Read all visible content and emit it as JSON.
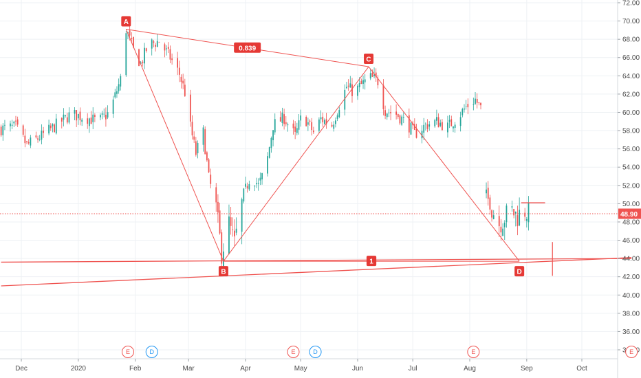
{
  "chart_data": {
    "type": "candlestick",
    "title": "",
    "xlabel": "",
    "ylabel": "",
    "ylim": [
      33,
      73
    ],
    "y_ticks": [
      "72.00",
      "70.00",
      "68.00",
      "66.00",
      "64.00",
      "62.00",
      "60.00",
      "58.00",
      "56.00",
      "54.00",
      "52.00",
      "50.00",
      "48.00",
      "46.00",
      "44.00",
      "42.00",
      "40.00",
      "38.00",
      "36.00",
      "34.00"
    ],
    "x_ticks": [
      {
        "label": "Dec",
        "date": "2019-12-01"
      },
      {
        "label": "2020",
        "date": "2020-01-01"
      },
      {
        "label": "Feb",
        "date": "2020-02-01"
      },
      {
        "label": "Mar",
        "date": "2020-03-01"
      },
      {
        "label": "Apr",
        "date": "2020-04-01"
      },
      {
        "label": "May",
        "date": "2020-05-01"
      },
      {
        "label": "Jun",
        "date": "2020-06-01"
      },
      {
        "label": "Jul",
        "date": "2020-07-01"
      },
      {
        "label": "Aug",
        "date": "2020-08-01"
      },
      {
        "label": "Sep",
        "date": "2020-09-01"
      },
      {
        "label": "Oct",
        "date": "2020-10-01"
      }
    ],
    "last_price": {
      "value": 48.9,
      "label": "48.90"
    },
    "price_path": [
      [
        "2019-11-20",
        58.2
      ],
      [
        "2019-11-28",
        58.4
      ],
      [
        "2019-12-04",
        56.4
      ],
      [
        "2019-12-12",
        57.4
      ],
      [
        "2019-12-20",
        58.6
      ],
      [
        "2019-12-28",
        59.8
      ],
      [
        "2020-01-06",
        59.4
      ],
      [
        "2020-01-12",
        59.0
      ],
      [
        "2020-01-18",
        60.0
      ],
      [
        "2020-01-22",
        62.4
      ],
      [
        "2020-01-24",
        63.6
      ],
      [
        "2020-01-27",
        69.1
      ],
      [
        "2020-01-31",
        66.8
      ],
      [
        "2020-02-04",
        65.3
      ],
      [
        "2020-02-08",
        67.4
      ],
      [
        "2020-02-14",
        67.8
      ],
      [
        "2020-02-20",
        66.0
      ],
      [
        "2020-02-25",
        64.2
      ],
      [
        "2020-02-28",
        62.2
      ],
      [
        "2020-03-02",
        58.4
      ],
      [
        "2020-03-05",
        55.5
      ],
      [
        "2020-03-09",
        57.8
      ],
      [
        "2020-03-12",
        52.8
      ],
      [
        "2020-03-16",
        49.5
      ],
      [
        "2020-03-19",
        44.6
      ],
      [
        "2020-03-23",
        47.8
      ],
      [
        "2020-03-26",
        45.6
      ],
      [
        "2020-03-31",
        51.0
      ],
      [
        "2020-04-04",
        53.2
      ],
      [
        "2020-04-08",
        52.0
      ],
      [
        "2020-04-12",
        53.8
      ],
      [
        "2020-04-16",
        58.6
      ],
      [
        "2020-04-22",
        59.4
      ],
      [
        "2020-04-28",
        57.4
      ],
      [
        "2020-05-02",
        59.8
      ],
      [
        "2020-05-08",
        57.8
      ],
      [
        "2020-05-12",
        59.3
      ],
      [
        "2020-05-18",
        58.6
      ],
      [
        "2020-05-22",
        60.8
      ],
      [
        "2020-05-26",
        62.8
      ],
      [
        "2020-05-30",
        62.2
      ],
      [
        "2020-06-04",
        63.2
      ],
      [
        "2020-06-08",
        63.8
      ],
      [
        "2020-06-12",
        63.4
      ],
      [
        "2020-06-16",
        60.2
      ],
      [
        "2020-06-22",
        59.8
      ],
      [
        "2020-06-28",
        58.8
      ],
      [
        "2020-07-02",
        57.6
      ],
      [
        "2020-07-08",
        58.6
      ],
      [
        "2020-07-14",
        59.0
      ],
      [
        "2020-07-20",
        58.4
      ],
      [
        "2020-07-26",
        59.6
      ],
      [
        "2020-07-30",
        60.6
      ],
      [
        "2020-08-04",
        61.4
      ],
      [
        "2020-08-07",
        60.4
      ]
    ],
    "price_path_2": [
      [
        "2020-08-09",
        51.4
      ],
      [
        "2020-08-12",
        50.0
      ],
      [
        "2020-08-15",
        48.6
      ],
      [
        "2020-08-17",
        47.8
      ],
      [
        "2020-08-19",
        48.2
      ],
      [
        "2020-08-21",
        48.8
      ],
      [
        "2020-08-24",
        49.2
      ],
      [
        "2020-08-27",
        48.6
      ],
      [
        "2020-08-30",
        49.4
      ],
      [
        "2020-09-02",
        48.9
      ]
    ],
    "pattern_points": [
      {
        "label": "A",
        "date": "2020-01-27",
        "price": 69.1
      },
      {
        "label": "B",
        "date": "2020-03-20",
        "price": 43.7
      },
      {
        "label": "C",
        "date": "2020-06-07",
        "price": 65.0
      },
      {
        "label": "D",
        "date": "2020-08-28",
        "price": 43.7
      }
    ],
    "ratios": [
      {
        "label": "0.839",
        "between": [
          "A",
          "C"
        ]
      },
      {
        "label": "1",
        "between": [
          "B",
          "D"
        ]
      }
    ],
    "resistance_line": {
      "from": [
        "2020-08-29",
        50.1
      ],
      "to": [
        "2020-09-11",
        50.1
      ]
    },
    "support_lines": [
      {
        "from": [
          "2019-11-20",
          43.6
        ],
        "to": [
          "2020-10-28",
          44.0
        ]
      },
      {
        "from": [
          "2019-11-20",
          41.0
        ],
        "to": [
          "2020-10-28",
          44.1
        ]
      }
    ],
    "vertical_marker": {
      "date": "2020-09-15",
      "from": 45.8,
      "to": 42.1
    },
    "events": [
      {
        "label": "E",
        "date": "2020-01-28",
        "kind": "earnings"
      },
      {
        "label": "D",
        "date": "2020-02-10",
        "kind": "dividend"
      },
      {
        "label": "E",
        "date": "2020-04-27",
        "kind": "earnings"
      },
      {
        "label": "D",
        "date": "2020-05-09",
        "kind": "dividend"
      },
      {
        "label": "E",
        "date": "2020-08-03",
        "kind": "earnings"
      },
      {
        "label": "E",
        "date": "2020-10-28",
        "kind": "earnings"
      }
    ],
    "colors": {
      "up": "#26a69a",
      "down": "#ef5350",
      "pattern": "#ef5350",
      "label_bg": "#e53935",
      "dividend": "#2196f3",
      "grid": "#eef1f4",
      "axis_text": "#4a4a4a"
    }
  }
}
